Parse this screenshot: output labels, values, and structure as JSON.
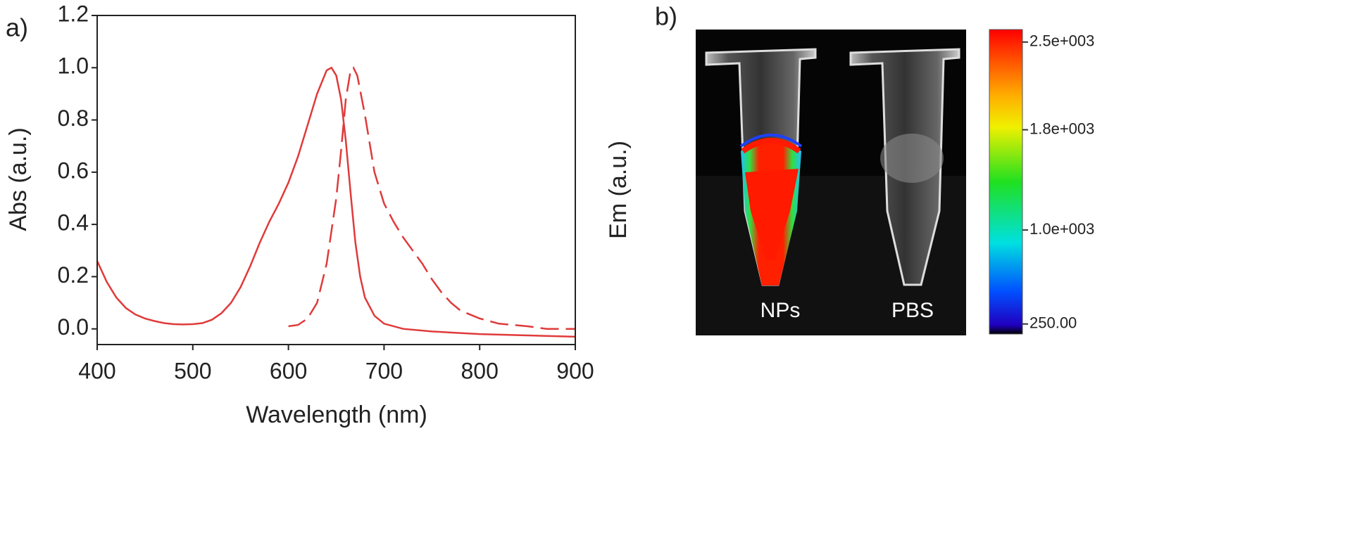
{
  "chart_data": {
    "type": "line",
    "panel_label": "a)",
    "x_label": "Wavelength (nm)",
    "y_label": "Abs (a.u.)",
    "xlim": [
      400,
      900
    ],
    "xticks": [
      400,
      500,
      600,
      700,
      800,
      900
    ],
    "ylim": [
      -0.06,
      1.2
    ],
    "yticks": [
      {
        "value": 0,
        "label": "0.0"
      },
      0.2,
      0.4,
      0.6,
      0.8,
      {
        "value": 1,
        "label": "1.0"
      },
      1.2
    ],
    "series": [
      {
        "color": "#e03a3a",
        "dash": false,
        "x": [
          400,
          410,
          420,
          430,
          440,
          450,
          460,
          470,
          480,
          490,
          500,
          510,
          520,
          530,
          540,
          550,
          560,
          570,
          580,
          590,
          600,
          610,
          620,
          630,
          640,
          645,
          650,
          655,
          660,
          665,
          670,
          675,
          680,
          690,
          700,
          720,
          750,
          800,
          850,
          900
        ],
        "values": [
          0.26,
          0.18,
          0.12,
          0.08,
          0.055,
          0.04,
          0.03,
          0.022,
          0.018,
          0.017,
          0.018,
          0.022,
          0.035,
          0.06,
          0.1,
          0.16,
          0.24,
          0.33,
          0.41,
          0.48,
          0.56,
          0.66,
          0.78,
          0.9,
          0.99,
          1.0,
          0.97,
          0.88,
          0.72,
          0.52,
          0.33,
          0.2,
          0.12,
          0.05,
          0.02,
          0.0,
          -0.01,
          -0.02,
          -0.025,
          -0.03
        ]
      },
      {
        "color": "#e03a3a",
        "dash": true,
        "x": [
          600,
          610,
          620,
          630,
          640,
          650,
          655,
          660,
          665,
          668,
          672,
          680,
          690,
          700,
          710,
          720,
          730,
          740,
          750,
          760,
          770,
          780,
          800,
          820,
          850,
          870,
          900
        ],
        "values": [
          0.01,
          0.015,
          0.04,
          0.1,
          0.25,
          0.5,
          0.68,
          0.88,
          0.99,
          1.0,
          0.97,
          0.82,
          0.6,
          0.48,
          0.41,
          0.35,
          0.3,
          0.25,
          0.19,
          0.14,
          0.1,
          0.07,
          0.04,
          0.02,
          0.01,
          0.0,
          0.0
        ]
      }
    ]
  },
  "panel_b": {
    "panel_label": "b)",
    "axis_label": "Em (a.u.)",
    "tube_labels": [
      "NPs",
      "PBS"
    ],
    "colorbar": {
      "clim": [
        170,
        2600
      ],
      "ticks": [
        {
          "value": 2500,
          "label": "2.5e+003"
        },
        {
          "value": 1800,
          "label": "1.8e+003"
        },
        {
          "value": 1000,
          "label": "1.0e+003"
        },
        {
          "value": 250,
          "label": "250.00"
        }
      ]
    }
  }
}
